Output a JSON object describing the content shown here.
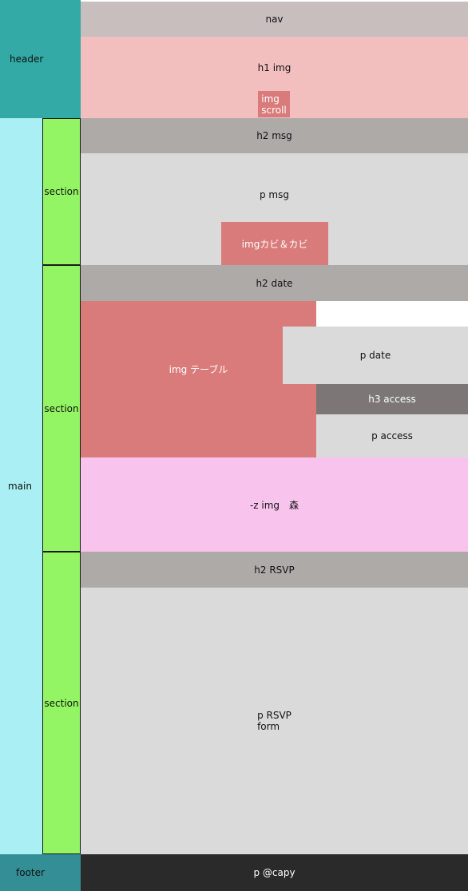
{
  "left": {
    "header": "header",
    "main": "main",
    "footer": "footer",
    "sections": [
      "section",
      "section",
      "section"
    ]
  },
  "header_area": {
    "nav": "nav",
    "h1": "h1 img",
    "img_scroll": [
      "img",
      "scroll"
    ]
  },
  "message": {
    "h2": "h2 msg",
    "p": "p msg",
    "img": "imgカビ＆カビ"
  },
  "date": {
    "h2": "h2 date",
    "img": "img テーブル",
    "p_date": "p date",
    "h3_access": "h3 access",
    "p_access": "p access",
    "z_img": "-z img　森"
  },
  "rsvp": {
    "h2": "h2 RSVP",
    "p": [
      "p RSVP",
      "form"
    ]
  },
  "footer_area": {
    "p": "p @capy"
  },
  "colors": {
    "header": "#33aaa5",
    "main": "#a9eff3",
    "footer": "#338e96",
    "section": "#93f563",
    "nav": "#c8bebe",
    "h1": "#f3bebe",
    "img": "#d97b7a",
    "heading": "#aeaaa8",
    "paragraph": "#dadada",
    "h3": "#7c7776",
    "z_img": "#f8c4ee",
    "footer_p": "#2a2a2a"
  }
}
